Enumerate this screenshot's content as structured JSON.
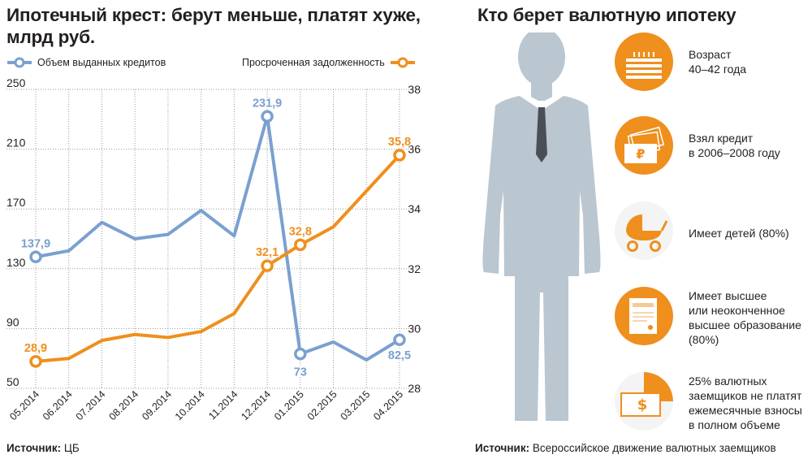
{
  "left_panel": {
    "title": "Ипотечный крест: берут меньше, платят хуже, млрд руб.",
    "source_label": "Источник:",
    "source_value": "ЦБ"
  },
  "right_panel": {
    "title": "Кто берет валютную ипотеку",
    "items": [
      {
        "icon": "birthday-cake-icon",
        "text": "Возраст\n40–42 года"
      },
      {
        "icon": "ruble-banknotes-icon",
        "text": "Взял кредит\nв 2006–2008 году"
      },
      {
        "icon": "baby-stroller-icon",
        "text": "Имеет детей (80%)"
      },
      {
        "icon": "diploma-icon",
        "text": "Имеет высшее\nили неоконченное\nвысшее образование\n(80%)"
      },
      {
        "icon": "dollar-banknote-icon",
        "text": "25% валютных\nзаемщиков не платят\nежемесячные взносы\nв полном объеме"
      }
    ],
    "source_label": "Источник:",
    "source_value": "Всероссийское движение валютных заемщиков"
  },
  "colors": {
    "blue": "#7aa0cf",
    "orange": "#ef8f1d",
    "silhouette": "#bac6d0",
    "text": "#231f20"
  },
  "chart_data": {
    "type": "line",
    "categories": [
      "05.2014",
      "06.2014",
      "07.2014",
      "08.2014",
      "09.2014",
      "10.2014",
      "11.2014",
      "12.2014",
      "01.2015",
      "02.2015",
      "03.2015",
      "04.2015"
    ],
    "series": [
      {
        "name": "Объем выданных кредитов",
        "axis": "left",
        "color": "#7aa0cf",
        "values": [
          137.9,
          142,
          161,
          150,
          153,
          169,
          152,
          231.9,
          73,
          81,
          69,
          82.5
        ],
        "labels": [
          {
            "index": 0,
            "text": "137,9"
          },
          {
            "index": 7,
            "text": "231,9"
          },
          {
            "index": 8,
            "text": "73"
          },
          {
            "index": 11,
            "text": "82,5"
          }
        ]
      },
      {
        "name": "Просроченная задолженность",
        "axis": "right",
        "color": "#ef8f1d",
        "values": [
          28.9,
          29.0,
          29.6,
          29.8,
          29.7,
          29.9,
          30.5,
          32.1,
          32.8,
          33.4,
          34.6,
          35.8
        ],
        "labels": [
          {
            "index": 0,
            "text": "28,9"
          },
          {
            "index": 7,
            "text": "32,1"
          },
          {
            "index": 8,
            "text": "32,8"
          },
          {
            "index": 11,
            "text": "35,8"
          }
        ]
      }
    ],
    "left_axis": {
      "ylim": [
        50,
        250
      ],
      "ticks": [
        "50",
        "90",
        "130",
        "170",
        "210",
        "250"
      ]
    },
    "right_axis": {
      "ylim": [
        28,
        38
      ],
      "ticks": [
        "28",
        "30",
        "32",
        "34",
        "36",
        "38"
      ]
    },
    "grid": "vertical",
    "legend": "top"
  }
}
